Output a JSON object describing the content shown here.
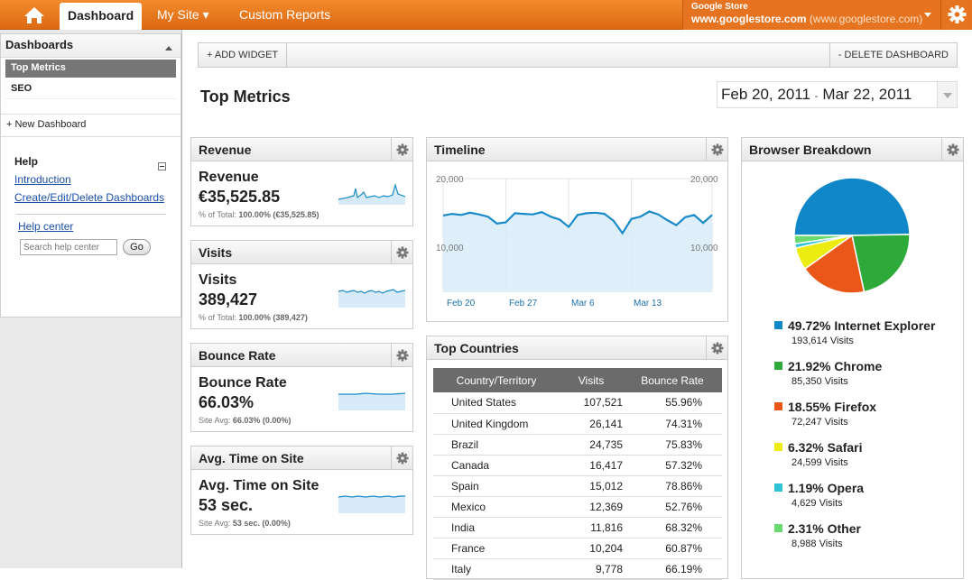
{
  "topnav": {
    "tabs": [
      {
        "label": "Dashboard",
        "active": true
      },
      {
        "label": "My Site ▾"
      },
      {
        "label": "Custom Reports"
      }
    ],
    "store_name": "Google Store",
    "store_url_bold": "www.googlestore.com",
    "store_url_paren": "(www.googlestore.com)"
  },
  "sidebar": {
    "header": "Dashboards",
    "items": [
      {
        "label": "Top Metrics",
        "selected": true
      },
      {
        "label": "SEO"
      }
    ],
    "new_dashboard": "+ New Dashboard",
    "help_title": "Help",
    "help_links": [
      "Introduction",
      "Create/Edit/Delete Dashboards"
    ],
    "help_center": "Help center",
    "search_placeholder": "Search help center",
    "go": "Go"
  },
  "toolbar": {
    "add_widget": "+ ADD WIDGET",
    "delete_dashboard": "- DELETE DASHBOARD"
  },
  "page_title": "Top Metrics",
  "date_range": {
    "start": "Feb 20, 2011",
    "separator": "-",
    "end": "Mar 22, 2011"
  },
  "metrics": [
    {
      "header": "Revenue",
      "label": "Revenue",
      "value": "€35,525.85",
      "sub_prefix": "% of Total:",
      "sub_value": "100.00% (€35,525.85)"
    },
    {
      "header": "Visits",
      "label": "Visits",
      "value": "389,427",
      "sub_prefix": "% of Total:",
      "sub_value": "100.00% (389,427)"
    },
    {
      "header": "Bounce Rate",
      "label": "Bounce Rate",
      "value": "66.03%",
      "sub_prefix": "Site Avg:",
      "sub_value": "66.03% (0.00%)"
    },
    {
      "header": "Avg. Time on Site",
      "label": "Avg. Time on Site",
      "value": "53 sec.",
      "sub_prefix": "Site Avg:",
      "sub_value": "53 sec. (0.00%)"
    }
  ],
  "timeline": {
    "header": "Timeline",
    "y_ticks": [
      "20,000",
      "10,000"
    ],
    "x_ticks": [
      "Feb 20",
      "Feb 27",
      "Mar 6",
      "Mar 13"
    ]
  },
  "top_countries": {
    "header": "Top Countries",
    "columns": [
      "Country/Territory",
      "Visits",
      "Bounce Rate"
    ],
    "rows": [
      [
        "United States",
        "107,521",
        "55.96%"
      ],
      [
        "United Kingdom",
        "26,141",
        "74.31%"
      ],
      [
        "Brazil",
        "24,735",
        "75.83%"
      ],
      [
        "Canada",
        "16,417",
        "57.32%"
      ],
      [
        "Spain",
        "15,012",
        "78.86%"
      ],
      [
        "Mexico",
        "12,369",
        "52.76%"
      ],
      [
        "India",
        "11,816",
        "68.32%"
      ],
      [
        "France",
        "10,204",
        "60.87%"
      ],
      [
        "Italy",
        "9,778",
        "66.19%"
      ]
    ]
  },
  "browser_breakdown": {
    "header": "Browser Breakdown",
    "items": [
      {
        "pct": "49.72% Internet Explorer",
        "visits": "193,614 Visits",
        "color": "#0f87c8"
      },
      {
        "pct": "21.92% Chrome",
        "visits": "85,350 Visits",
        "color": "#2eaa3a"
      },
      {
        "pct": "18.55% Firefox",
        "visits": "72,247 Visits",
        "color": "#ea5719"
      },
      {
        "pct": "6.32% Safari",
        "visits": "24,599 Visits",
        "color": "#ecec10"
      },
      {
        "pct": "1.19% Opera",
        "visits": "4,629 Visits",
        "color": "#32c2d6"
      },
      {
        "pct": "2.31% Other",
        "visits": "8,988 Visits",
        "color": "#6ad96f"
      }
    ]
  },
  "chart_data": [
    {
      "type": "line",
      "title": "Timeline",
      "x": [
        "Feb 20",
        "Feb 21",
        "Feb 22",
        "Feb 23",
        "Feb 24",
        "Feb 25",
        "Feb 26",
        "Feb 27",
        "Feb 28",
        "Mar 1",
        "Mar 2",
        "Mar 3",
        "Mar 4",
        "Mar 5",
        "Mar 6",
        "Mar 7",
        "Mar 8",
        "Mar 9",
        "Mar 10",
        "Mar 11",
        "Mar 12",
        "Mar 13",
        "Mar 14",
        "Mar 15",
        "Mar 16",
        "Mar 17",
        "Mar 18",
        "Mar 19",
        "Mar 20",
        "Mar 21",
        "Mar 22"
      ],
      "series": [
        {
          "values": [
            13500,
            13800,
            13600,
            14000,
            13700,
            13300,
            12100,
            12300,
            13900,
            13800,
            13700,
            14100,
            13300,
            12800,
            11500,
            13600,
            13900,
            14000,
            13800,
            12600,
            10400,
            12900,
            13300,
            14200,
            13700,
            12700,
            11800,
            13200,
            13600,
            12200,
            13600
          ]
        }
      ],
      "ylim": [
        0,
        20000
      ],
      "grid": true
    },
    {
      "type": "pie",
      "title": "Browser Breakdown",
      "categories": [
        "Internet Explorer",
        "Chrome",
        "Firefox",
        "Safari",
        "Opera",
        "Other"
      ],
      "values": [
        49.72,
        21.92,
        18.55,
        6.32,
        1.19,
        2.31
      ]
    }
  ]
}
